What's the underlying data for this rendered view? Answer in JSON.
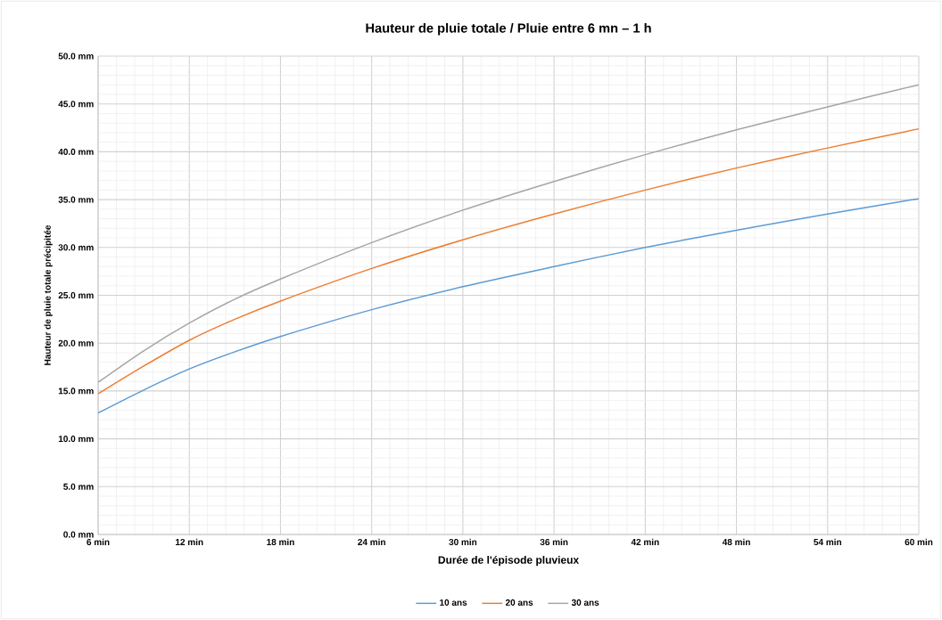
{
  "chart_data": {
    "type": "line",
    "title": "Hauteur de pluie totale / Pluie entre 6 mn – 1 h",
    "xlabel": "Durée de l'épisode pluvieux",
    "ylabel": "Hauteur de pluie totale précipitée",
    "x": [
      6,
      9,
      12,
      15,
      18,
      24,
      30,
      36,
      42,
      48,
      54,
      60
    ],
    "series": [
      {
        "name": "10 ans",
        "color": "#5b9bd5",
        "values": [
          12.7,
          15.1,
          17.3,
          19.1,
          20.7,
          23.5,
          25.9,
          28.0,
          30.0,
          31.8,
          33.5,
          35.1
        ]
      },
      {
        "name": "20 ans",
        "color": "#ed7d31",
        "values": [
          14.7,
          17.6,
          20.3,
          22.5,
          24.4,
          27.8,
          30.8,
          33.5,
          36.0,
          38.3,
          40.4,
          42.4
        ]
      },
      {
        "name": "30 ans",
        "color": "#a5a5a5",
        "values": [
          15.9,
          19.2,
          22.1,
          24.6,
          26.7,
          30.5,
          33.9,
          36.9,
          39.7,
          42.3,
          44.7,
          47.0
        ]
      }
    ],
    "xlim": [
      6,
      60
    ],
    "ylim": [
      0,
      50
    ],
    "xticks": [
      {
        "value": 6,
        "label": "6 min"
      },
      {
        "value": 12,
        "label": "12 min"
      },
      {
        "value": 18,
        "label": "18 min"
      },
      {
        "value": 24,
        "label": "24 min"
      },
      {
        "value": 30,
        "label": "30 min"
      },
      {
        "value": 36,
        "label": "36 min"
      },
      {
        "value": 42,
        "label": "42 min"
      },
      {
        "value": 48,
        "label": "48 min"
      },
      {
        "value": 54,
        "label": "54 min"
      },
      {
        "value": 60,
        "label": "60 min"
      }
    ],
    "yticks": [
      {
        "value": 0,
        "label": "0.0 mm"
      },
      {
        "value": 5,
        "label": "5.0 mm"
      },
      {
        "value": 10,
        "label": "10.0 mm"
      },
      {
        "value": 15,
        "label": "15.0 mm"
      },
      {
        "value": 20,
        "label": "20.0 mm"
      },
      {
        "value": 25,
        "label": "25.0 mm"
      },
      {
        "value": 30,
        "label": "30.0 mm"
      },
      {
        "value": 35,
        "label": "35.0 mm"
      },
      {
        "value": 40,
        "label": "40.0 mm"
      },
      {
        "value": 45,
        "label": "45.0 mm"
      },
      {
        "value": 50,
        "label": "50.0 mm"
      }
    ],
    "grid": true,
    "legend": "bottom",
    "marker": "none"
  }
}
